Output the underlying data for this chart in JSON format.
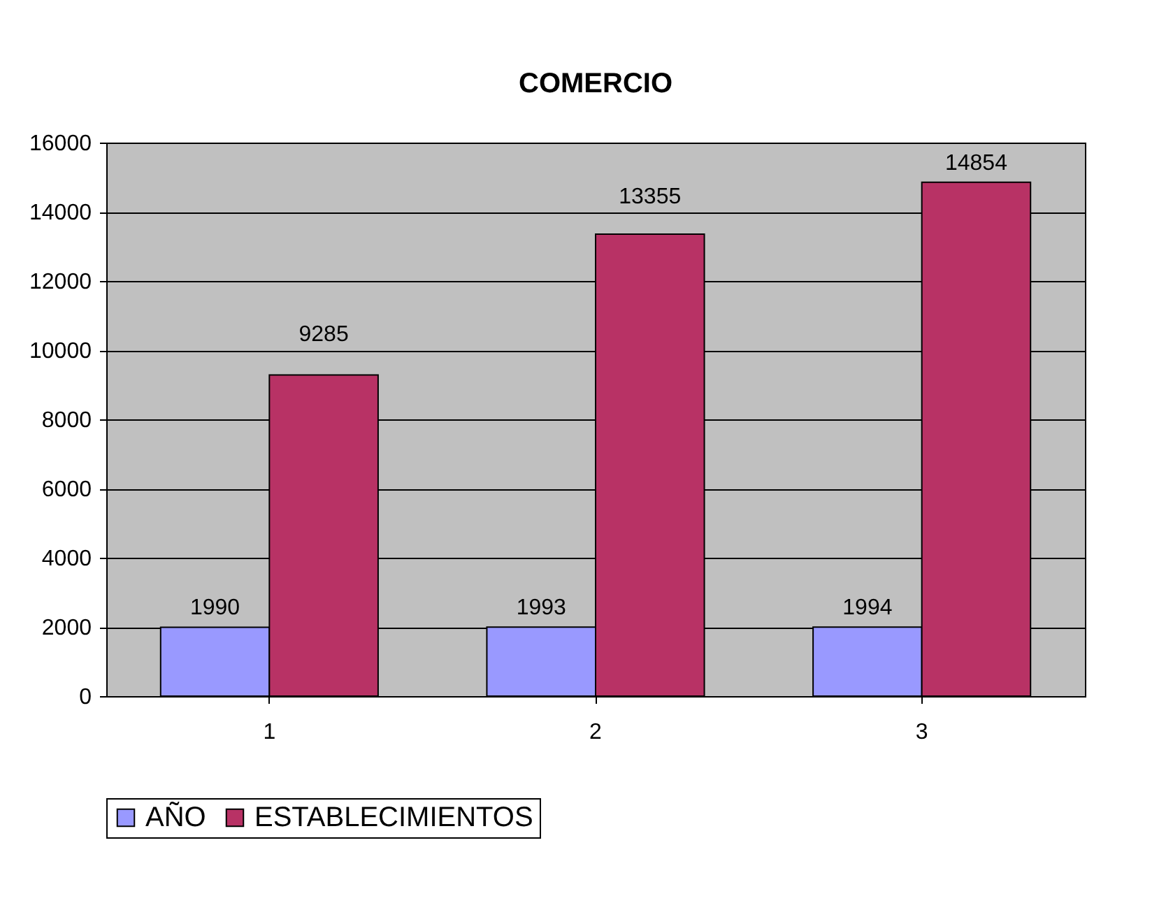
{
  "chart_data": {
    "type": "bar",
    "title": "COMERCIO",
    "categories": [
      "1",
      "2",
      "3"
    ],
    "series": [
      {
        "name": "AÑO",
        "color": "#9999ff",
        "values": [
          1990,
          1993,
          1994
        ]
      },
      {
        "name": "ESTABLECIMIENTOS",
        "color": "#b83265",
        "values": [
          9285,
          13355,
          14854
        ]
      }
    ],
    "ylim": [
      0,
      16000
    ],
    "yticks": [
      0,
      2000,
      4000,
      6000,
      8000,
      10000,
      12000,
      14000,
      16000
    ],
    "grid": "y",
    "legend": "bottom",
    "data_labels": true
  }
}
